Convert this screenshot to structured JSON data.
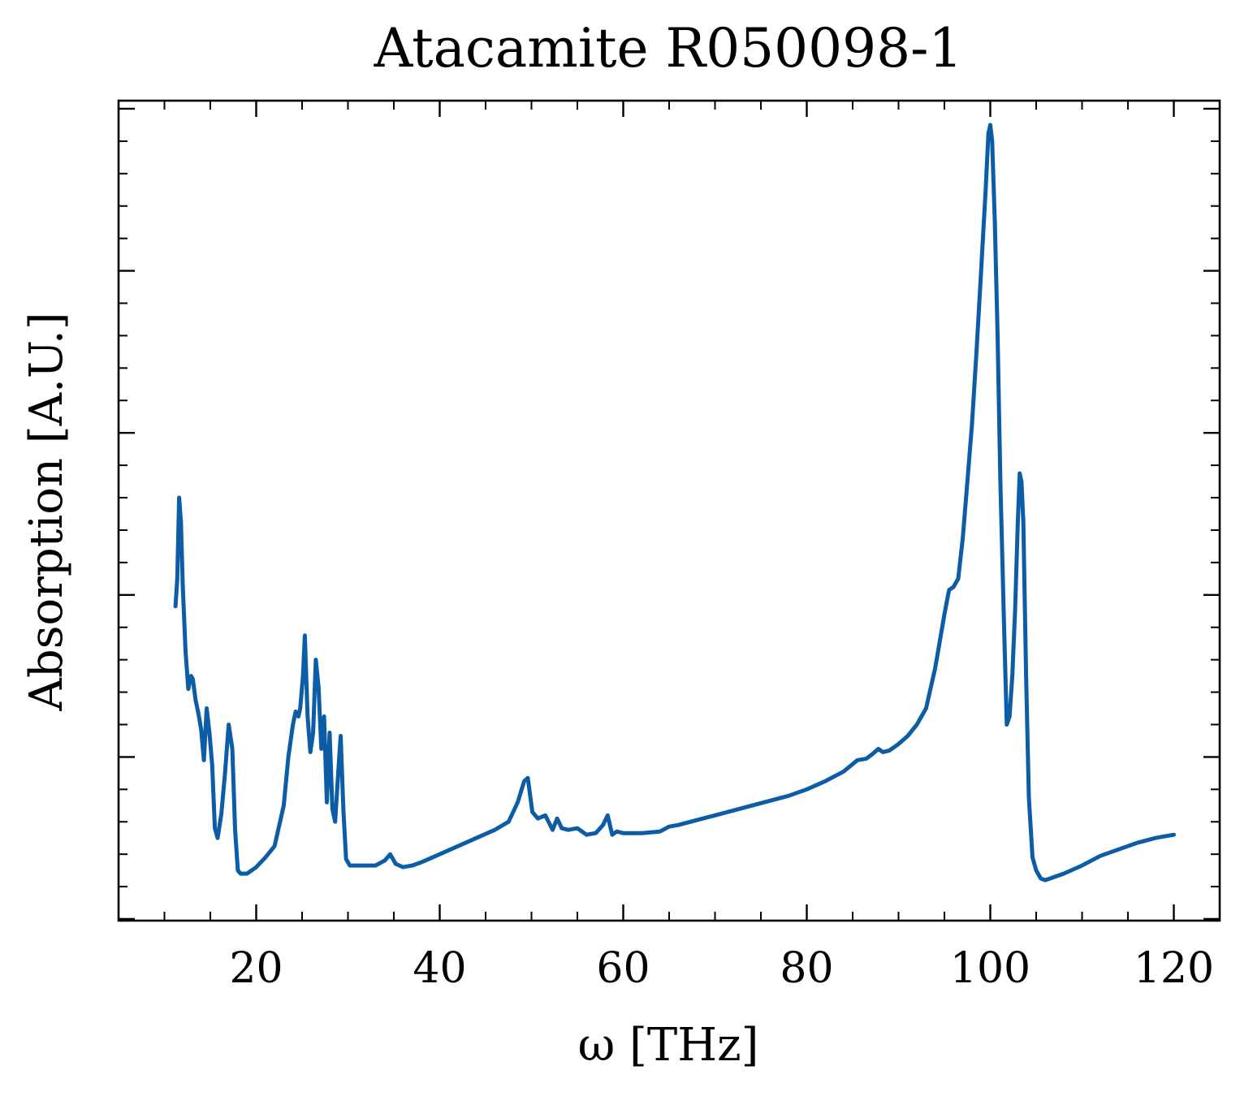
{
  "chart_data": {
    "type": "line",
    "title": "Atacamite R050098-1",
    "xlabel": "ω [THz]",
    "ylabel": "Absorption [A.U.]",
    "xlim": [
      5,
      125
    ],
    "ylim": [
      -0.01,
      5.05
    ],
    "x_ticks": [
      20,
      40,
      60,
      80,
      100,
      120
    ],
    "x_tick_labels": [
      "20",
      "40",
      "60",
      "80",
      "100",
      "120"
    ],
    "y_major_ticks": [
      0,
      1,
      2,
      3,
      4,
      5
    ],
    "y_tick_labels_shown": false,
    "grid": false,
    "legend": "none",
    "series_color": "#0C5DA5",
    "series": [
      {
        "x": [
          11.2,
          11.4,
          11.6,
          11.8,
          12.0,
          12.3,
          12.6,
          12.9,
          13.1,
          13.4,
          13.7,
          14.0,
          14.3,
          14.6,
          14.9,
          15.2,
          15.5,
          15.8,
          16.2,
          16.6,
          17.0,
          17.4,
          17.7,
          18.0,
          18.3,
          18.7,
          19.0,
          19.5,
          20.0,
          21.0,
          22.0,
          23.0,
          23.5,
          24.0,
          24.3,
          24.6,
          24.8,
          25.1,
          25.3,
          25.6,
          25.9,
          26.2,
          26.5,
          26.8,
          27.1,
          27.4,
          27.7,
          28.0,
          28.3,
          28.6,
          28.9,
          29.2,
          29.5,
          29.8,
          30.2,
          31.0,
          32.0,
          33.0,
          34.0,
          34.6,
          35.2,
          36.0,
          37.0,
          38.0,
          40.0,
          42.0,
          44.0,
          46.0,
          47.5,
          48.5,
          49.2,
          49.6,
          50.1,
          50.7,
          51.5,
          52.3,
          52.8,
          53.3,
          54.0,
          55.0,
          56.0,
          57.0,
          57.8,
          58.3,
          58.8,
          59.3,
          60.0,
          62.0,
          64.0,
          65.0,
          66.0,
          68.0,
          70.0,
          72.0,
          74.0,
          76.0,
          78.0,
          80.0,
          82.0,
          84.0,
          85.5,
          86.5,
          87.2,
          87.8,
          88.3,
          89.0,
          90.0,
          91.0,
          92.0,
          93.0,
          94.0,
          95.0,
          95.5,
          96.0,
          96.5,
          97.0,
          97.5,
          98.0,
          98.5,
          99.0,
          99.5,
          99.8,
          100.0,
          100.2,
          100.5,
          100.8,
          101.1,
          101.5,
          101.8,
          102.1,
          102.4,
          102.7,
          103.0,
          103.2,
          103.4,
          103.6,
          103.9,
          104.2,
          104.6,
          105.0,
          105.5,
          106.0,
          107.0,
          108.0,
          110.0,
          112.0,
          114.0,
          116.0,
          118.0,
          120.0
        ],
        "y": [
          1.93,
          2.1,
          2.6,
          2.45,
          2.05,
          1.65,
          1.42,
          1.5,
          1.48,
          1.35,
          1.27,
          1.17,
          0.98,
          1.3,
          1.15,
          0.95,
          0.56,
          0.5,
          0.65,
          0.9,
          1.2,
          1.05,
          0.55,
          0.3,
          0.28,
          0.28,
          0.28,
          0.3,
          0.32,
          0.38,
          0.45,
          0.7,
          1.0,
          1.2,
          1.28,
          1.25,
          1.3,
          1.5,
          1.75,
          1.25,
          1.03,
          1.15,
          1.6,
          1.43,
          1.05,
          1.25,
          0.72,
          1.15,
          0.68,
          0.6,
          0.87,
          1.13,
          0.67,
          0.37,
          0.33,
          0.33,
          0.33,
          0.33,
          0.36,
          0.4,
          0.34,
          0.32,
          0.33,
          0.35,
          0.4,
          0.45,
          0.5,
          0.55,
          0.6,
          0.72,
          0.85,
          0.87,
          0.66,
          0.62,
          0.64,
          0.55,
          0.62,
          0.56,
          0.55,
          0.56,
          0.52,
          0.53,
          0.58,
          0.64,
          0.52,
          0.54,
          0.53,
          0.53,
          0.54,
          0.57,
          0.58,
          0.61,
          0.64,
          0.67,
          0.7,
          0.73,
          0.76,
          0.8,
          0.85,
          0.91,
          0.98,
          0.99,
          1.02,
          1.05,
          1.03,
          1.04,
          1.08,
          1.13,
          1.2,
          1.3,
          1.55,
          1.88,
          2.03,
          2.05,
          2.1,
          2.35,
          2.7,
          3.05,
          3.5,
          4.0,
          4.5,
          4.85,
          4.9,
          4.8,
          4.3,
          3.6,
          2.7,
          1.8,
          1.2,
          1.25,
          1.5,
          1.9,
          2.45,
          2.75,
          2.7,
          2.45,
          1.5,
          0.75,
          0.38,
          0.3,
          0.25,
          0.24,
          0.26,
          0.28,
          0.33,
          0.39,
          0.43,
          0.47,
          0.5,
          0.52
        ]
      }
    ]
  }
}
